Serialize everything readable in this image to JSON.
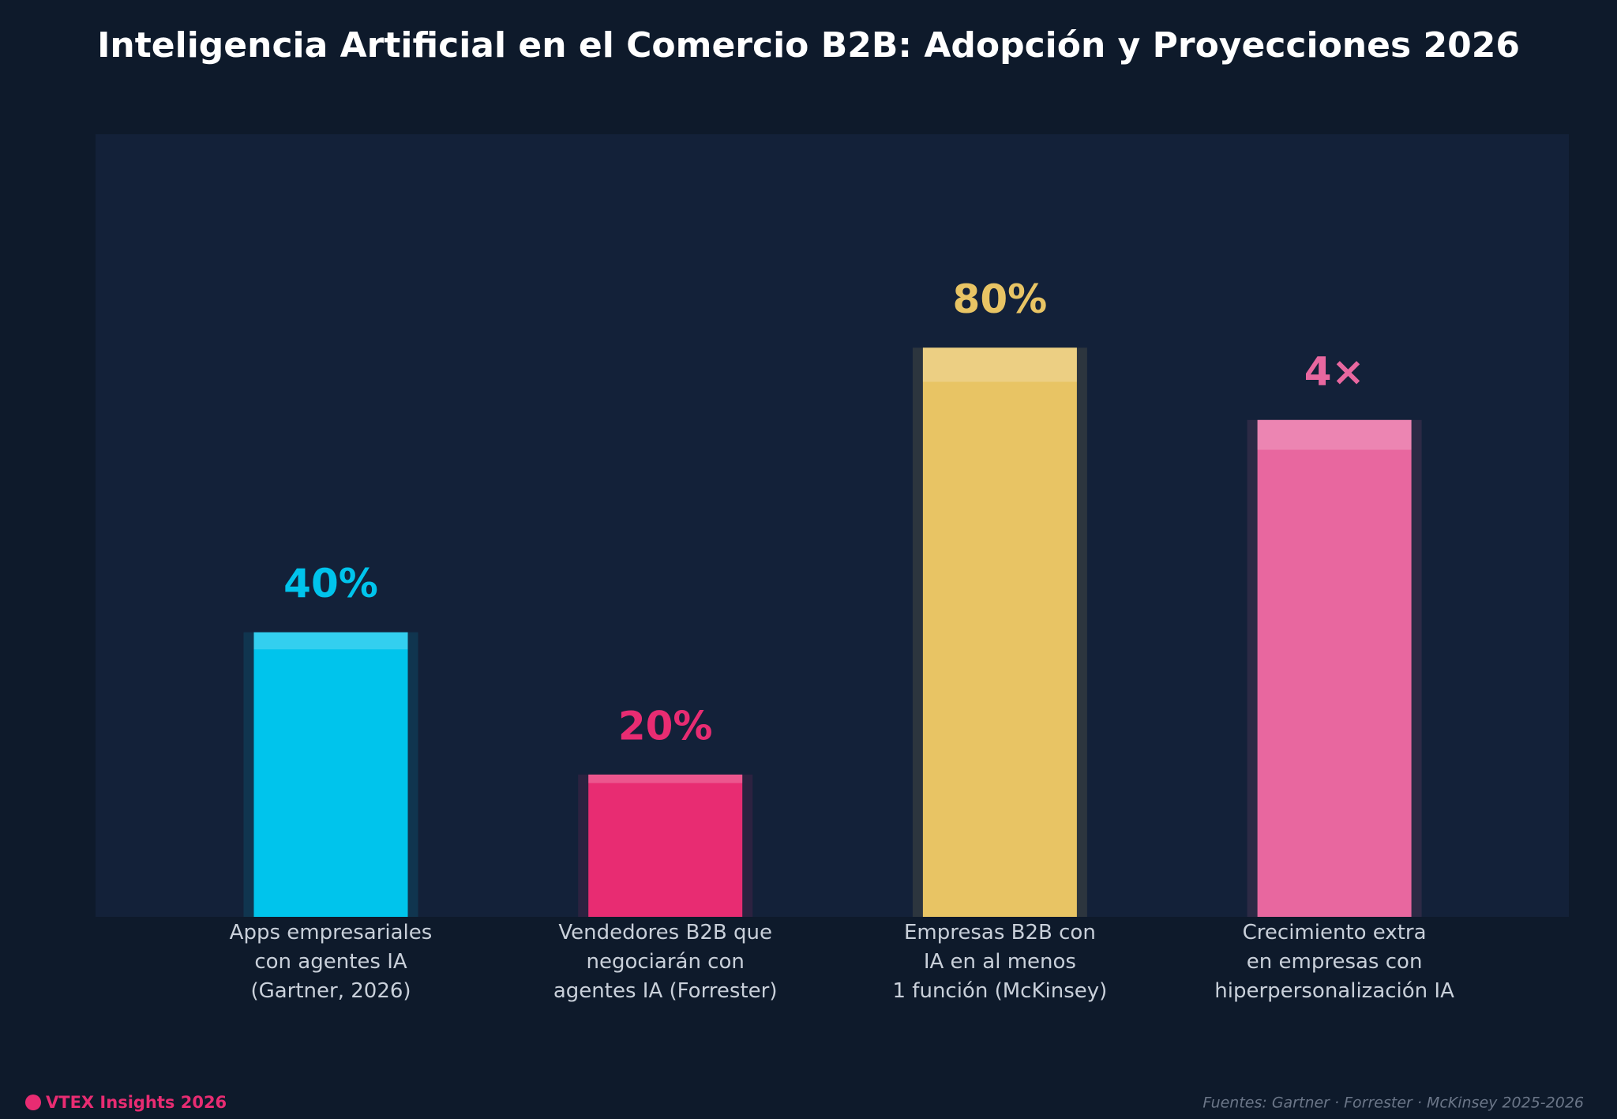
{
  "chart_data": {
    "type": "bar",
    "title": "Inteligencia Artificial en el Comercio B2B: Adopción y Proyecciones 2026",
    "categories": [
      "Apps empresariales\ncon agentes IA\n(Gartner, 2026)",
      "Vendedores B2B que\nnegociarán con\nagentes IA (Forrester)",
      "Empresas B2B con\nIA en al menos\n1 función (McKinsey)",
      "Crecimiento extra\nen empresas con\nhiperpersonalización IA"
    ],
    "values": [
      40,
      20,
      80,
      4
    ],
    "value_labels": [
      "40%",
      "20%",
      "80%",
      "4×"
    ],
    "value_axes": [
      "y",
      "y",
      "y",
      "y2"
    ],
    "colors": [
      "#00c4ec",
      "#e82c72",
      "#e8c464",
      "#e8679f"
    ],
    "ylim": [
      0,
      110
    ],
    "y2lim": [
      0,
      6.3
    ],
    "brand": "VTEX Insights 2026",
    "source": "Fuentes: Gartner · Forrester · McKinsey 2025-2026"
  }
}
